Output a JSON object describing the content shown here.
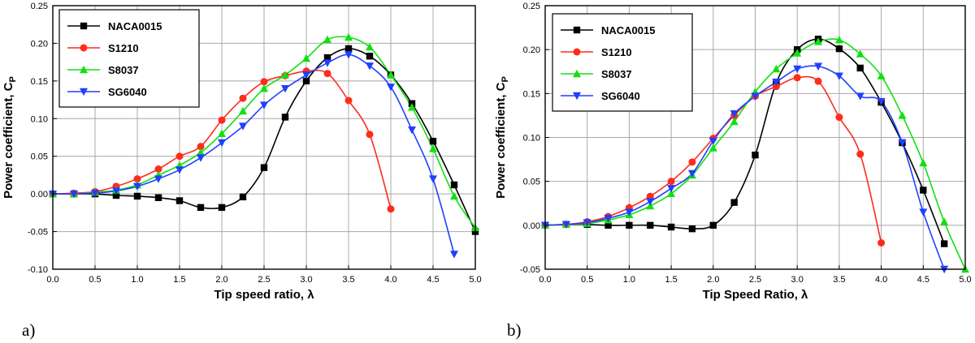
{
  "panel_labels": [
    "a)",
    "b)"
  ],
  "chart_data": [
    {
      "type": "line",
      "panel": "a)",
      "xlabel": "Tip speed ratio, λ",
      "ylabel_main": "Power coefficient, C",
      "ylabel_sub": "P",
      "xlim": [
        0,
        5
      ],
      "ylim": [
        -0.1,
        0.25
      ],
      "xticks": [
        "0.0",
        "0.5",
        "1.0",
        "1.5",
        "2.0",
        "2.5",
        "3.0",
        "3.5",
        "4.0",
        "4.5",
        "5.0"
      ],
      "xtick_values": [
        0,
        0.5,
        1,
        1.5,
        2,
        2.5,
        3,
        3.5,
        4,
        4.5,
        5
      ],
      "yticks": [
        "-0.10",
        "-0.05",
        "0.00",
        "0.05",
        "0.10",
        "0.15",
        "0.20",
        "0.25"
      ],
      "ytick_values": [
        -0.1,
        -0.05,
        0,
        0.05,
        0.1,
        0.15,
        0.2,
        0.25
      ],
      "grid": true,
      "legend_position": "top-left",
      "series": [
        {
          "name": "NACA0015",
          "color": "#000000",
          "marker": "square",
          "x": [
            0,
            0.25,
            0.5,
            0.75,
            1.0,
            1.25,
            1.5,
            1.75,
            2.0,
            2.25,
            2.5,
            2.75,
            3.0,
            3.25,
            3.5,
            3.75,
            4.0,
            4.25,
            4.5,
            4.75,
            5.0
          ],
          "y": [
            0,
            0,
            0,
            -0.002,
            -0.003,
            -0.005,
            -0.009,
            -0.018,
            -0.018,
            -0.004,
            0.035,
            0.102,
            0.15,
            0.181,
            0.193,
            0.183,
            0.158,
            0.12,
            0.07,
            0.012,
            -0.05
          ]
        },
        {
          "name": "S1210",
          "color": "#ff2b1c",
          "marker": "circle",
          "x": [
            0,
            0.25,
            0.5,
            0.75,
            1.0,
            1.25,
            1.5,
            1.75,
            2.0,
            2.25,
            2.5,
            2.75,
            3.0,
            3.25,
            3.5,
            3.75,
            4.0
          ],
          "y": [
            0,
            0.001,
            0.003,
            0.01,
            0.02,
            0.033,
            0.05,
            0.063,
            0.098,
            0.127,
            0.149,
            0.157,
            0.163,
            0.16,
            0.124,
            0.079,
            -0.02
          ]
        },
        {
          "name": "S8037",
          "color": "#10e010",
          "marker": "triangle-up",
          "x": [
            0,
            0.25,
            0.5,
            0.75,
            1.0,
            1.25,
            1.5,
            1.75,
            2.0,
            2.25,
            2.5,
            2.75,
            3.0,
            3.25,
            3.5,
            3.75,
            4.0,
            4.25,
            4.5,
            4.75,
            5.0
          ],
          "y": [
            0,
            0,
            0.002,
            0.005,
            0.012,
            0.025,
            0.038,
            0.055,
            0.08,
            0.11,
            0.14,
            0.158,
            0.18,
            0.205,
            0.208,
            0.195,
            0.158,
            0.115,
            0.06,
            -0.003,
            -0.045
          ]
        },
        {
          "name": "SG6040",
          "color": "#1f3fff",
          "marker": "triangle-down",
          "x": [
            0,
            0.25,
            0.5,
            0.75,
            1.0,
            1.25,
            1.5,
            1.75,
            2.0,
            2.25,
            2.5,
            2.75,
            3.0,
            3.25,
            3.5,
            3.75,
            4.0,
            4.25,
            4.5,
            4.75
          ],
          "y": [
            0,
            0,
            0.001,
            0.004,
            0.01,
            0.02,
            0.032,
            0.048,
            0.068,
            0.09,
            0.118,
            0.14,
            0.158,
            0.174,
            0.185,
            0.17,
            0.142,
            0.085,
            0.02,
            -0.08
          ]
        }
      ]
    },
    {
      "type": "line",
      "panel": "b)",
      "xlabel": "Tip Speed Ratio, λ",
      "ylabel_main": "Power coefficient, C",
      "ylabel_sub": "P",
      "xlim": [
        0,
        5
      ],
      "ylim": [
        -0.05,
        0.25
      ],
      "xticks": [
        "0.0",
        "0.5",
        "1.0",
        "1.5",
        "2.0",
        "2.5",
        "3.0",
        "3.5",
        "4.0",
        "4.5",
        "5.0"
      ],
      "xtick_values": [
        0,
        0.5,
        1,
        1.5,
        2,
        2.5,
        3,
        3.5,
        4,
        4.5,
        5
      ],
      "yticks": [
        "-0.05",
        "0.00",
        "0.05",
        "0.10",
        "0.15",
        "0.20",
        "0.25"
      ],
      "ytick_values": [
        -0.05,
        0,
        0.05,
        0.1,
        0.15,
        0.2,
        0.25
      ],
      "grid": true,
      "legend_position": "top-left",
      "series": [
        {
          "name": "NACA0015",
          "color": "#000000",
          "marker": "square",
          "x": [
            0,
            0.25,
            0.5,
            0.75,
            1.0,
            1.25,
            1.5,
            1.75,
            2.0,
            2.25,
            2.5,
            2.75,
            3.0,
            3.25,
            3.5,
            3.75,
            4.0,
            4.25,
            4.5,
            4.75
          ],
          "y": [
            0,
            0.001,
            0.001,
            0,
            0,
            0,
            -0.002,
            -0.004,
            0,
            0.026,
            0.08,
            0.162,
            0.2,
            0.212,
            0.201,
            0.179,
            0.14,
            0.094,
            0.04,
            -0.021
          ]
        },
        {
          "name": "S1210",
          "color": "#ff2b1c",
          "marker": "circle",
          "x": [
            0,
            0.25,
            0.5,
            0.75,
            1.0,
            1.25,
            1.5,
            1.75,
            2.0,
            2.25,
            2.5,
            2.75,
            3.0,
            3.25,
            3.5,
            3.75,
            4.0
          ],
          "y": [
            0,
            0.001,
            0.004,
            0.01,
            0.02,
            0.033,
            0.05,
            0.072,
            0.099,
            0.125,
            0.147,
            0.158,
            0.168,
            0.164,
            0.123,
            0.081,
            -0.02
          ]
        },
        {
          "name": "S8037",
          "color": "#10e010",
          "marker": "triangle-up",
          "x": [
            0,
            0.25,
            0.5,
            0.75,
            1.0,
            1.25,
            1.5,
            1.75,
            2.0,
            2.25,
            2.5,
            2.75,
            3.0,
            3.25,
            3.5,
            3.75,
            4.0,
            4.25,
            4.5,
            4.75,
            5.0
          ],
          "y": [
            0,
            0.001,
            0.002,
            0.006,
            0.012,
            0.022,
            0.036,
            0.057,
            0.088,
            0.118,
            0.152,
            0.178,
            0.196,
            0.209,
            0.211,
            0.195,
            0.17,
            0.125,
            0.071,
            0.004,
            -0.05
          ]
        },
        {
          "name": "SG6040",
          "color": "#1f3fff",
          "marker": "triangle-down",
          "x": [
            0,
            0.25,
            0.5,
            0.75,
            1.0,
            1.25,
            1.5,
            1.75,
            2.0,
            2.25,
            2.5,
            2.75,
            3.0,
            3.25,
            3.5,
            3.75,
            4.0,
            4.25,
            4.5,
            4.75
          ],
          "y": [
            0,
            0.001,
            0.003,
            0.008,
            0.015,
            0.027,
            0.042,
            0.059,
            0.096,
            0.127,
            0.147,
            0.163,
            0.178,
            0.181,
            0.17,
            0.147,
            0.141,
            0.094,
            0.015,
            -0.05
          ]
        }
      ]
    }
  ]
}
